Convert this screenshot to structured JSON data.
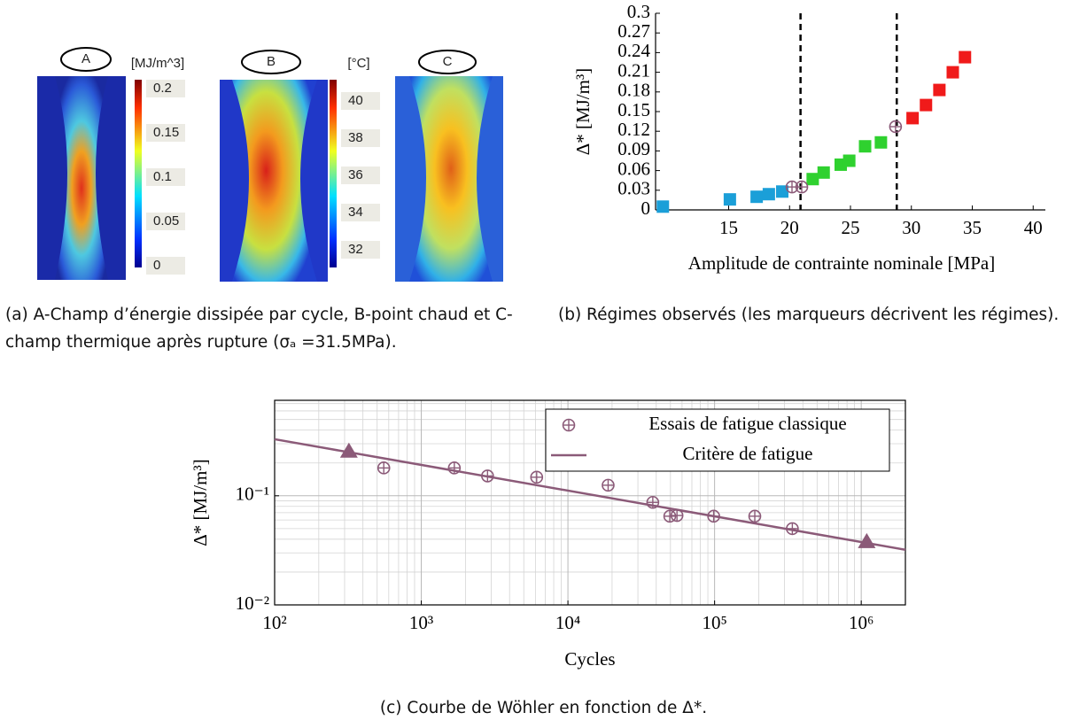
{
  "figure_a": {
    "labels": [
      "A",
      "B",
      "C"
    ],
    "colorbars": [
      {
        "unit": "[MJ/m^3]",
        "ticks": [
          "0.2",
          "0.15",
          "0.1",
          "0.05",
          "0"
        ]
      },
      {
        "unit": "[°C]",
        "ticks": [
          "40",
          "38",
          "36",
          "34",
          "32"
        ]
      }
    ]
  },
  "chart_data": [
    {
      "type": "scatter",
      "xlabel": "Amplitude de contrainte nominale [MPa]",
      "ylabel": "Δ* [MJ/m³]",
      "xlim": [
        9,
        41
      ],
      "ylim": [
        0,
        0.3
      ],
      "xticks": [
        15,
        20,
        25,
        30,
        35,
        40
      ],
      "yticks": [
        0,
        0.03,
        0.06,
        0.09,
        0.12,
        0.15,
        0.18,
        0.21,
        0.24,
        0.27,
        0.3
      ],
      "grid": false,
      "vlines": [
        20.9,
        28.8
      ],
      "series": [
        {
          "marker": "square",
          "color": "#1b9fd8",
          "x": [
            9.6,
            15.1,
            17.3,
            18.3,
            19.4
          ],
          "values": [
            0.005,
            0.016,
            0.02,
            0.024,
            0.028
          ]
        },
        {
          "marker": "square",
          "color": "#2fd12f",
          "x": [
            21.9,
            22.8,
            24.2,
            24.9,
            26.2,
            27.5
          ],
          "values": [
            0.047,
            0.057,
            0.069,
            0.075,
            0.097,
            0.103
          ]
        },
        {
          "marker": "square",
          "color": "#f01a1a",
          "x": [
            30.1,
            31.2,
            32.3,
            33.4,
            34.4
          ],
          "values": [
            0.14,
            0.16,
            0.183,
            0.21,
            0.233
          ]
        },
        {
          "marker": "circle-plus",
          "color": "#8b5a78",
          "x": [
            20.2,
            21.0,
            28.7
          ],
          "values": [
            0.035,
            0.035,
            0.127
          ]
        }
      ]
    },
    {
      "type": "scatter",
      "xlabel": "Cycles",
      "ylabel": "Δ* [MJ/m³]",
      "log": true,
      "xlim": [
        100,
        2000000
      ],
      "ylim": [
        0.01,
        0.75
      ],
      "xticks": [
        {
          "value": 100,
          "label": "10²"
        },
        {
          "value": 1000,
          "label": "10³"
        },
        {
          "value": 10000,
          "label": "10⁴"
        },
        {
          "value": 100000,
          "label": "10⁵"
        },
        {
          "value": 1000000,
          "label": "10⁶"
        }
      ],
      "yticks": [
        {
          "value": 0.01,
          "label": "10⁻²"
        },
        {
          "value": 0.1,
          "label": "10⁻¹"
        }
      ],
      "grid": true,
      "minor_grid": true,
      "legend": "upper right",
      "series": [
        {
          "name": "Essais de fatigue classique",
          "marker": "circle-plus",
          "color": "#8b5a78",
          "x": [
            555,
            1680,
            2830,
            6120,
            18800,
            37900,
            49500,
            55400,
            98600,
            188000,
            339000
          ],
          "values": [
            0.18,
            0.18,
            0.152,
            0.148,
            0.125,
            0.087,
            0.065,
            0.066,
            0.065,
            0.065,
            0.05
          ]
        },
        {
          "name": "Critère de fatigue",
          "style": "line",
          "color": "#8b5a78",
          "x": [
            100,
            2000000
          ],
          "values": [
            0.33,
            0.032
          ]
        },
        {
          "marker": "triangle",
          "color": "#8b5a78",
          "x": [
            321,
            1090000
          ],
          "values": [
            0.255,
            0.0378
          ]
        }
      ]
    }
  ],
  "captions": [
    "(a) A-Champ d’énergie dissipée par cycle, B-point chaud et C-champ thermique après rupture (σₐ =31.5MPa).",
    "(b) Régimes observés (les marqueurs décrivent les régimes).",
    "(c) Courbe de Wöhler en fonction de Δ*."
  ]
}
